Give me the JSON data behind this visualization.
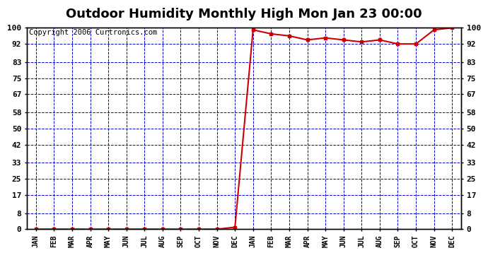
{
  "title": "Outdoor Humidity Monthly High Mon Jan 23 00:00",
  "copyright": "Copyright 2006 Curtronics.com",
  "x_labels": [
    "JAN",
    "FEB",
    "MAR",
    "APR",
    "MAY",
    "JUN",
    "JUL",
    "AUG",
    "SEP",
    "OCT",
    "NOV",
    "DEC",
    "JAN",
    "FEB",
    "MAR",
    "APR",
    "MAY",
    "JUN",
    "JUL",
    "AUG",
    "SEP",
    "OCT",
    "NOV",
    "DEC"
  ],
  "y_ticks": [
    0,
    8,
    17,
    25,
    33,
    42,
    50,
    58,
    67,
    75,
    83,
    92,
    100
  ],
  "ylim": [
    0,
    100
  ],
  "data_y": [
    0,
    0,
    0,
    0,
    0,
    0,
    0,
    0,
    0,
    0,
    0,
    1,
    99,
    97,
    96,
    94,
    95,
    94,
    93,
    94,
    92,
    92,
    99,
    100
  ],
  "line_color": "#cc0000",
  "marker_color": "#cc0000",
  "bg_color": "#ffffff",
  "grid_color": "#0000cc",
  "border_color": "#000000",
  "title_fontsize": 13,
  "copyright_fontsize": 7.5
}
